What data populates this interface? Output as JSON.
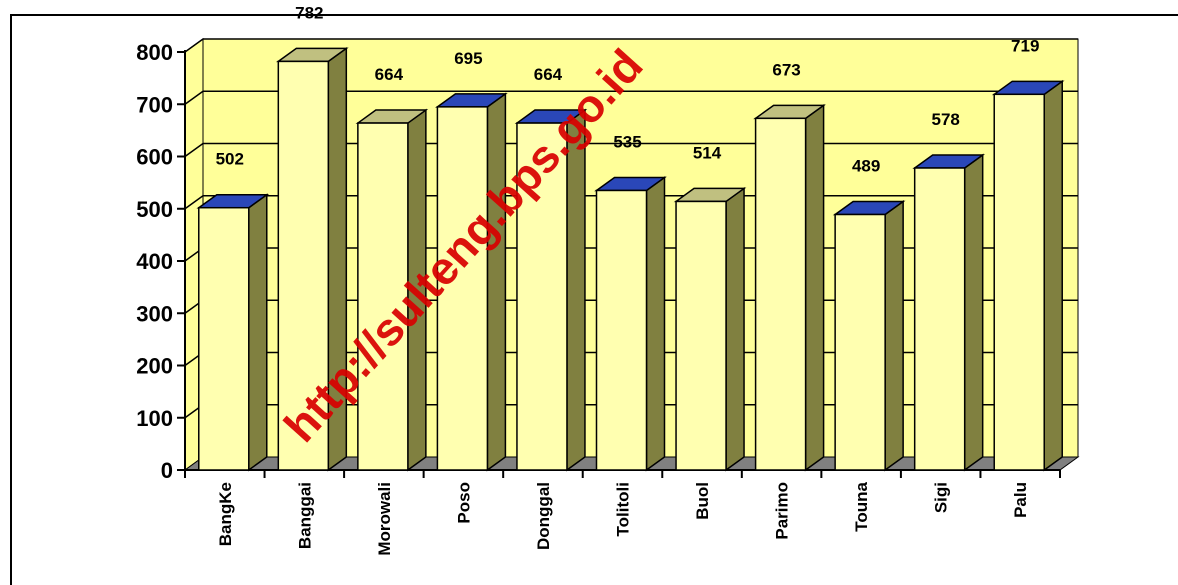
{
  "watermark": "http://sulteng.bps.go.id",
  "chart_data": {
    "type": "bar",
    "categories": [
      "BangKe",
      "Banggai",
      "Morowali",
      "Poso",
      "Donggal",
      "Tolitoli",
      "Buol",
      "Parimo",
      "Touna",
      "Sigi",
      "Palu"
    ],
    "values": [
      502,
      782,
      664,
      695,
      664,
      535,
      514,
      673,
      489,
      578,
      719
    ],
    "ylim": [
      0,
      800
    ],
    "yticks": [
      "0",
      "100",
      "200",
      "300",
      "400",
      "500",
      "600",
      "700",
      "800"
    ],
    "grid": true,
    "style": "3d",
    "colors": {
      "wall": "#ffff99",
      "bar_front": "#ffffb0",
      "bar_side": "#808040",
      "top_default": "#c0c080",
      "top_highlight": "#2a47b8",
      "floor": "#808080"
    },
    "highlight_tops": [
      "BangKe",
      "Poso",
      "Donggal",
      "Tolitoli",
      "Touna",
      "Sigi",
      "Palu"
    ]
  }
}
